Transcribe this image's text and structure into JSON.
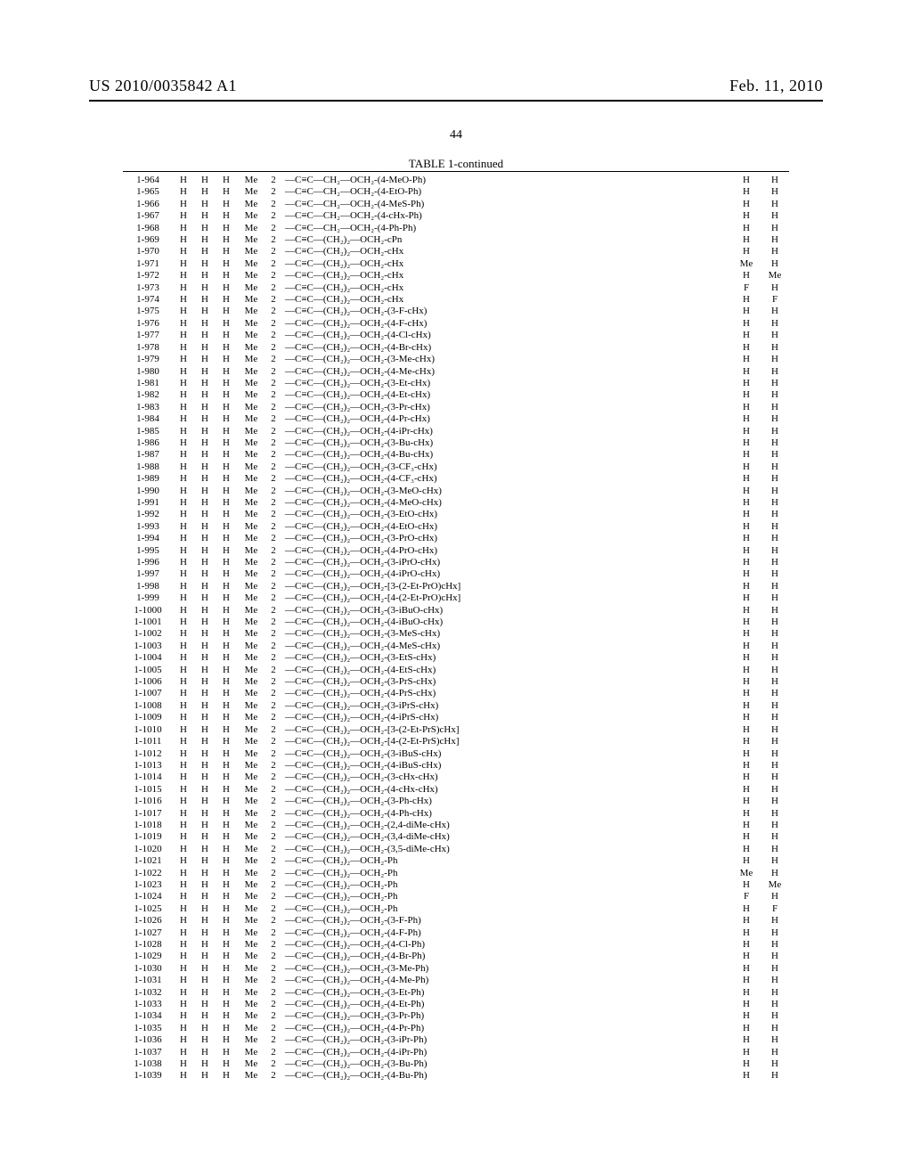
{
  "header": {
    "pubnum": "US 2010/0035842 A1",
    "date": "Feb. 11, 2010"
  },
  "pagenum": "44",
  "table_title": "TABLE 1-continued",
  "columns": {
    "count": 9
  },
  "rows": [
    {
      "id": "1-964",
      "a": "H",
      "b": "H",
      "c": "H",
      "d": "Me",
      "e": "2",
      "f": "—C≡C—CH₂—OCH₂-(4-MeO-Ph)",
      "g": "H",
      "h": "H"
    },
    {
      "id": "1-965",
      "a": "H",
      "b": "H",
      "c": "H",
      "d": "Me",
      "e": "2",
      "f": "—C≡C—CH₂—OCH₂-(4-EtO-Ph)",
      "g": "H",
      "h": "H"
    },
    {
      "id": "1-966",
      "a": "H",
      "b": "H",
      "c": "H",
      "d": "Me",
      "e": "2",
      "f": "—C≡C—CH₂—OCH₂-(4-MeS-Ph)",
      "g": "H",
      "h": "H"
    },
    {
      "id": "1-967",
      "a": "H",
      "b": "H",
      "c": "H",
      "d": "Me",
      "e": "2",
      "f": "—C≡C—CH₂—OCH₂-(4-cHx-Ph)",
      "g": "H",
      "h": "H"
    },
    {
      "id": "1-968",
      "a": "H",
      "b": "H",
      "c": "H",
      "d": "Me",
      "e": "2",
      "f": "—C≡C—CH₂—OCH₂-(4-Ph-Ph)",
      "g": "H",
      "h": "H"
    },
    {
      "id": "1-969",
      "a": "H",
      "b": "H",
      "c": "H",
      "d": "Me",
      "e": "2",
      "f": "—C≡C—(CH₂)₂—OCH₂-cPn",
      "g": "H",
      "h": "H"
    },
    {
      "id": "1-970",
      "a": "H",
      "b": "H",
      "c": "H",
      "d": "Me",
      "e": "2",
      "f": "—C≡C—(CH₂)₂—OCH₂-cHx",
      "g": "H",
      "h": "H"
    },
    {
      "id": "1-971",
      "a": "H",
      "b": "H",
      "c": "H",
      "d": "Me",
      "e": "2",
      "f": "—C≡C—(CH₂)₂—OCH₂-cHx",
      "g": "Me",
      "h": "H"
    },
    {
      "id": "1-972",
      "a": "H",
      "b": "H",
      "c": "H",
      "d": "Me",
      "e": "2",
      "f": "—C≡C—(CH₂)₂—OCH₂-cHx",
      "g": "H",
      "h": "Me"
    },
    {
      "id": "1-973",
      "a": "H",
      "b": "H",
      "c": "H",
      "d": "Me",
      "e": "2",
      "f": "—C≡C—(CH₂)₂—OCH₂-cHx",
      "g": "F",
      "h": "H"
    },
    {
      "id": "1-974",
      "a": "H",
      "b": "H",
      "c": "H",
      "d": "Me",
      "e": "2",
      "f": "—C≡C—(CH₂)₂—OCH₂-cHx",
      "g": "H",
      "h": "F"
    },
    {
      "id": "1-975",
      "a": "H",
      "b": "H",
      "c": "H",
      "d": "Me",
      "e": "2",
      "f": "—C≡C—(CH₂)₂—OCH₂-(3-F-cHx)",
      "g": "H",
      "h": "H"
    },
    {
      "id": "1-976",
      "a": "H",
      "b": "H",
      "c": "H",
      "d": "Me",
      "e": "2",
      "f": "—C≡C—(CH₂)₂—OCH₂-(4-F-cHx)",
      "g": "H",
      "h": "H"
    },
    {
      "id": "1-977",
      "a": "H",
      "b": "H",
      "c": "H",
      "d": "Me",
      "e": "2",
      "f": "—C≡C—(CH₂)₂—OCH₂-(4-Cl-cHx)",
      "g": "H",
      "h": "H"
    },
    {
      "id": "1-978",
      "a": "H",
      "b": "H",
      "c": "H",
      "d": "Me",
      "e": "2",
      "f": "—C≡C—(CH₂)₂—OCH₂-(4-Br-cHx)",
      "g": "H",
      "h": "H"
    },
    {
      "id": "1-979",
      "a": "H",
      "b": "H",
      "c": "H",
      "d": "Me",
      "e": "2",
      "f": "—C≡C—(CH₂)₂—OCH₂-(3-Me-cHx)",
      "g": "H",
      "h": "H"
    },
    {
      "id": "1-980",
      "a": "H",
      "b": "H",
      "c": "H",
      "d": "Me",
      "e": "2",
      "f": "—C≡C—(CH₂)₂—OCH₂-(4-Me-cHx)",
      "g": "H",
      "h": "H"
    },
    {
      "id": "1-981",
      "a": "H",
      "b": "H",
      "c": "H",
      "d": "Me",
      "e": "2",
      "f": "—C≡C—(CH₂)₂—OCH₂-(3-Et-cHx)",
      "g": "H",
      "h": "H"
    },
    {
      "id": "1-982",
      "a": "H",
      "b": "H",
      "c": "H",
      "d": "Me",
      "e": "2",
      "f": "—C≡C—(CH₂)₂—OCH₂-(4-Et-cHx)",
      "g": "H",
      "h": "H"
    },
    {
      "id": "1-983",
      "a": "H",
      "b": "H",
      "c": "H",
      "d": "Me",
      "e": "2",
      "f": "—C≡C—(CH₂)₂—OCH₂-(3-Pr-cHx)",
      "g": "H",
      "h": "H"
    },
    {
      "id": "1-984",
      "a": "H",
      "b": "H",
      "c": "H",
      "d": "Me",
      "e": "2",
      "f": "—C≡C—(CH₂)₂—OCH₂-(4-Pr-cHx)",
      "g": "H",
      "h": "H"
    },
    {
      "id": "1-985",
      "a": "H",
      "b": "H",
      "c": "H",
      "d": "Me",
      "e": "2",
      "f": "—C≡C—(CH₂)₂—OCH₂-(4-iPr-cHx)",
      "g": "H",
      "h": "H"
    },
    {
      "id": "1-986",
      "a": "H",
      "b": "H",
      "c": "H",
      "d": "Me",
      "e": "2",
      "f": "—C≡C—(CH₂)₂—OCH₂-(3-Bu-cHx)",
      "g": "H",
      "h": "H"
    },
    {
      "id": "1-987",
      "a": "H",
      "b": "H",
      "c": "H",
      "d": "Me",
      "e": "2",
      "f": "—C≡C—(CH₂)₂—OCH₂-(4-Bu-cHx)",
      "g": "H",
      "h": "H"
    },
    {
      "id": "1-988",
      "a": "H",
      "b": "H",
      "c": "H",
      "d": "Me",
      "e": "2",
      "f": "—C≡C—(CH₂)₂—OCH₂-(3-CF₃-cHx)",
      "g": "H",
      "h": "H"
    },
    {
      "id": "1-989",
      "a": "H",
      "b": "H",
      "c": "H",
      "d": "Me",
      "e": "2",
      "f": "—C≡C—(CH₂)₂—OCH₂-(4-CF₃-cHx)",
      "g": "H",
      "h": "H"
    },
    {
      "id": "1-990",
      "a": "H",
      "b": "H",
      "c": "H",
      "d": "Me",
      "e": "2",
      "f": "—C≡C—(CH₂)₂—OCH₂-(3-MeO-cHx)",
      "g": "H",
      "h": "H"
    },
    {
      "id": "1-991",
      "a": "H",
      "b": "H",
      "c": "H",
      "d": "Me",
      "e": "2",
      "f": "—C≡C—(CH₂)₂—OCH₂-(4-MeO-cHx)",
      "g": "H",
      "h": "H"
    },
    {
      "id": "1-992",
      "a": "H",
      "b": "H",
      "c": "H",
      "d": "Me",
      "e": "2",
      "f": "—C≡C—(CH₂)₂—OCH₂-(3-EtO-cHx)",
      "g": "H",
      "h": "H"
    },
    {
      "id": "1-993",
      "a": "H",
      "b": "H",
      "c": "H",
      "d": "Me",
      "e": "2",
      "f": "—C≡C—(CH₂)₂—OCH₂-(4-EtO-cHx)",
      "g": "H",
      "h": "H"
    },
    {
      "id": "1-994",
      "a": "H",
      "b": "H",
      "c": "H",
      "d": "Me",
      "e": "2",
      "f": "—C≡C—(CH₂)₂—OCH₂-(3-PrO-cHx)",
      "g": "H",
      "h": "H"
    },
    {
      "id": "1-995",
      "a": "H",
      "b": "H",
      "c": "H",
      "d": "Me",
      "e": "2",
      "f": "—C≡C—(CH₂)₂—OCH₂-(4-PrO-cHx)",
      "g": "H",
      "h": "H"
    },
    {
      "id": "1-996",
      "a": "H",
      "b": "H",
      "c": "H",
      "d": "Me",
      "e": "2",
      "f": "—C≡C—(CH₂)₂—OCH₂-(3-iPrO-cHx)",
      "g": "H",
      "h": "H"
    },
    {
      "id": "1-997",
      "a": "H",
      "b": "H",
      "c": "H",
      "d": "Me",
      "e": "2",
      "f": "—C≡C—(CH₂)₂—OCH₂-(4-iPrO-cHx)",
      "g": "H",
      "h": "H"
    },
    {
      "id": "1-998",
      "a": "H",
      "b": "H",
      "c": "H",
      "d": "Me",
      "e": "2",
      "f": "—C≡C—(CH₂)₂—OCH₂-[3-(2-Et-PrO)cHx]",
      "g": "H",
      "h": "H"
    },
    {
      "id": "1-999",
      "a": "H",
      "b": "H",
      "c": "H",
      "d": "Me",
      "e": "2",
      "f": "—C≡C—(CH₂)₂—OCH₂-[4-(2-Et-PrO)cHx]",
      "g": "H",
      "h": "H"
    },
    {
      "id": "1-1000",
      "a": "H",
      "b": "H",
      "c": "H",
      "d": "Me",
      "e": "2",
      "f": "—C≡C—(CH₂)₂—OCH₂-(3-iBuO-cHx)",
      "g": "H",
      "h": "H"
    },
    {
      "id": "1-1001",
      "a": "H",
      "b": "H",
      "c": "H",
      "d": "Me",
      "e": "2",
      "f": "—C≡C—(CH₂)₂—OCH₂-(4-iBuO-cHx)",
      "g": "H",
      "h": "H"
    },
    {
      "id": "1-1002",
      "a": "H",
      "b": "H",
      "c": "H",
      "d": "Me",
      "e": "2",
      "f": "—C≡C—(CH₂)₂—OCH₂-(3-MeS-cHx)",
      "g": "H",
      "h": "H"
    },
    {
      "id": "1-1003",
      "a": "H",
      "b": "H",
      "c": "H",
      "d": "Me",
      "e": "2",
      "f": "—C≡C—(CH₂)₂—OCH₂-(4-MeS-cHx)",
      "g": "H",
      "h": "H"
    },
    {
      "id": "1-1004",
      "a": "H",
      "b": "H",
      "c": "H",
      "d": "Me",
      "e": "2",
      "f": "—C≡C—(CH₂)₂—OCH₂-(3-EtS-cHx)",
      "g": "H",
      "h": "H"
    },
    {
      "id": "1-1005",
      "a": "H",
      "b": "H",
      "c": "H",
      "d": "Me",
      "e": "2",
      "f": "—C≡C—(CH₂)₂—OCH₂-(4-EtS-cHx)",
      "g": "H",
      "h": "H"
    },
    {
      "id": "1-1006",
      "a": "H",
      "b": "H",
      "c": "H",
      "d": "Me",
      "e": "2",
      "f": "—C≡C—(CH₂)₂—OCH₂-(3-PrS-cHx)",
      "g": "H",
      "h": "H"
    },
    {
      "id": "1-1007",
      "a": "H",
      "b": "H",
      "c": "H",
      "d": "Me",
      "e": "2",
      "f": "—C≡C—(CH₂)₂—OCH₂-(4-PrS-cHx)",
      "g": "H",
      "h": "H"
    },
    {
      "id": "1-1008",
      "a": "H",
      "b": "H",
      "c": "H",
      "d": "Me",
      "e": "2",
      "f": "—C≡C—(CH₂)₂—OCH₂-(3-iPrS-cHx)",
      "g": "H",
      "h": "H"
    },
    {
      "id": "1-1009",
      "a": "H",
      "b": "H",
      "c": "H",
      "d": "Me",
      "e": "2",
      "f": "—C≡C—(CH₂)₂—OCH₂-(4-iPrS-cHx)",
      "g": "H",
      "h": "H"
    },
    {
      "id": "1-1010",
      "a": "H",
      "b": "H",
      "c": "H",
      "d": "Me",
      "e": "2",
      "f": "—C≡C—(CH₂)₂—OCH₂-[3-(2-Et-PrS)cHx]",
      "g": "H",
      "h": "H"
    },
    {
      "id": "1-1011",
      "a": "H",
      "b": "H",
      "c": "H",
      "d": "Me",
      "e": "2",
      "f": "—C≡C—(CH₂)₂—OCH₂-[4-(2-Et-PrS)cHx]",
      "g": "H",
      "h": "H"
    },
    {
      "id": "1-1012",
      "a": "H",
      "b": "H",
      "c": "H",
      "d": "Me",
      "e": "2",
      "f": "—C≡C—(CH₂)₂—OCH₂-(3-iBuS-cHx)",
      "g": "H",
      "h": "H"
    },
    {
      "id": "1-1013",
      "a": "H",
      "b": "H",
      "c": "H",
      "d": "Me",
      "e": "2",
      "f": "—C≡C—(CH₂)₂—OCH₂-(4-iBuS-cHx)",
      "g": "H",
      "h": "H"
    },
    {
      "id": "1-1014",
      "a": "H",
      "b": "H",
      "c": "H",
      "d": "Me",
      "e": "2",
      "f": "—C≡C—(CH₂)₂—OCH₂-(3-cHx-cHx)",
      "g": "H",
      "h": "H"
    },
    {
      "id": "1-1015",
      "a": "H",
      "b": "H",
      "c": "H",
      "d": "Me",
      "e": "2",
      "f": "—C≡C—(CH₂)₂—OCH₂-(4-cHx-cHx)",
      "g": "H",
      "h": "H"
    },
    {
      "id": "1-1016",
      "a": "H",
      "b": "H",
      "c": "H",
      "d": "Me",
      "e": "2",
      "f": "—C≡C—(CH₂)₂—OCH₂-(3-Ph-cHx)",
      "g": "H",
      "h": "H"
    },
    {
      "id": "1-1017",
      "a": "H",
      "b": "H",
      "c": "H",
      "d": "Me",
      "e": "2",
      "f": "—C≡C—(CH₂)₂—OCH₂-(4-Ph-cHx)",
      "g": "H",
      "h": "H"
    },
    {
      "id": "1-1018",
      "a": "H",
      "b": "H",
      "c": "H",
      "d": "Me",
      "e": "2",
      "f": "—C≡C—(CH₂)₂—OCH₂-(2,4-diMe-cHx)",
      "g": "H",
      "h": "H"
    },
    {
      "id": "1-1019",
      "a": "H",
      "b": "H",
      "c": "H",
      "d": "Me",
      "e": "2",
      "f": "—C≡C—(CH₂)₂—OCH₂-(3,4-diMe-cHx)",
      "g": "H",
      "h": "H"
    },
    {
      "id": "1-1020",
      "a": "H",
      "b": "H",
      "c": "H",
      "d": "Me",
      "e": "2",
      "f": "—C≡C—(CH₂)₂—OCH₂-(3,5-diMe-cHx)",
      "g": "H",
      "h": "H"
    },
    {
      "id": "1-1021",
      "a": "H",
      "b": "H",
      "c": "H",
      "d": "Me",
      "e": "2",
      "f": "—C≡C—(CH₂)₂—OCH₂-Ph",
      "g": "H",
      "h": "H"
    },
    {
      "id": "1-1022",
      "a": "H",
      "b": "H",
      "c": "H",
      "d": "Me",
      "e": "2",
      "f": "—C≡C—(CH₂)₂—OCH₂-Ph",
      "g": "Me",
      "h": "H"
    },
    {
      "id": "1-1023",
      "a": "H",
      "b": "H",
      "c": "H",
      "d": "Me",
      "e": "2",
      "f": "—C≡C—(CH₂)₂—OCH₂-Ph",
      "g": "H",
      "h": "Me"
    },
    {
      "id": "1-1024",
      "a": "H",
      "b": "H",
      "c": "H",
      "d": "Me",
      "e": "2",
      "f": "—C≡C—(CH₂)₂—OCH₂-Ph",
      "g": "F",
      "h": "H"
    },
    {
      "id": "1-1025",
      "a": "H",
      "b": "H",
      "c": "H",
      "d": "Me",
      "e": "2",
      "f": "—C≡C—(CH₂)₂—OCH₂-Ph",
      "g": "H",
      "h": "F"
    },
    {
      "id": "1-1026",
      "a": "H",
      "b": "H",
      "c": "H",
      "d": "Me",
      "e": "2",
      "f": "—C≡C—(CH₂)₂—OCH₂-(3-F-Ph)",
      "g": "H",
      "h": "H"
    },
    {
      "id": "1-1027",
      "a": "H",
      "b": "H",
      "c": "H",
      "d": "Me",
      "e": "2",
      "f": "—C≡C—(CH₂)₂—OCH₂-(4-F-Ph)",
      "g": "H",
      "h": "H"
    },
    {
      "id": "1-1028",
      "a": "H",
      "b": "H",
      "c": "H",
      "d": "Me",
      "e": "2",
      "f": "—C≡C—(CH₂)₂—OCH₂-(4-Cl-Ph)",
      "g": "H",
      "h": "H"
    },
    {
      "id": "1-1029",
      "a": "H",
      "b": "H",
      "c": "H",
      "d": "Me",
      "e": "2",
      "f": "—C≡C—(CH₂)₂—OCH₂-(4-Br-Ph)",
      "g": "H",
      "h": "H"
    },
    {
      "id": "1-1030",
      "a": "H",
      "b": "H",
      "c": "H",
      "d": "Me",
      "e": "2",
      "f": "—C≡C—(CH₂)₂—OCH₂-(3-Me-Ph)",
      "g": "H",
      "h": "H"
    },
    {
      "id": "1-1031",
      "a": "H",
      "b": "H",
      "c": "H",
      "d": "Me",
      "e": "2",
      "f": "—C≡C—(CH₂)₂—OCH₂-(4-Me-Ph)",
      "g": "H",
      "h": "H"
    },
    {
      "id": "1-1032",
      "a": "H",
      "b": "H",
      "c": "H",
      "d": "Me",
      "e": "2",
      "f": "—C≡C—(CH₂)₂—OCH₂-(3-Et-Ph)",
      "g": "H",
      "h": "H"
    },
    {
      "id": "1-1033",
      "a": "H",
      "b": "H",
      "c": "H",
      "d": "Me",
      "e": "2",
      "f": "—C≡C—(CH₂)₂—OCH₂-(4-Et-Ph)",
      "g": "H",
      "h": "H"
    },
    {
      "id": "1-1034",
      "a": "H",
      "b": "H",
      "c": "H",
      "d": "Me",
      "e": "2",
      "f": "—C≡C—(CH₂)₂—OCH₂-(3-Pr-Ph)",
      "g": "H",
      "h": "H"
    },
    {
      "id": "1-1035",
      "a": "H",
      "b": "H",
      "c": "H",
      "d": "Me",
      "e": "2",
      "f": "—C≡C—(CH₂)₂—OCH₂-(4-Pr-Ph)",
      "g": "H",
      "h": "H"
    },
    {
      "id": "1-1036",
      "a": "H",
      "b": "H",
      "c": "H",
      "d": "Me",
      "e": "2",
      "f": "—C≡C—(CH₂)₂—OCH₂-(3-iPr-Ph)",
      "g": "H",
      "h": "H"
    },
    {
      "id": "1-1037",
      "a": "H",
      "b": "H",
      "c": "H",
      "d": "Me",
      "e": "2",
      "f": "—C≡C—(CH₂)₂—OCH₂-(4-iPr-Ph)",
      "g": "H",
      "h": "H"
    },
    {
      "id": "1-1038",
      "a": "H",
      "b": "H",
      "c": "H",
      "d": "Me",
      "e": "2",
      "f": "—C≡C—(CH₂)₂—OCH₂-(3-Bu-Ph)",
      "g": "H",
      "h": "H"
    },
    {
      "id": "1-1039",
      "a": "H",
      "b": "H",
      "c": "H",
      "d": "Me",
      "e": "2",
      "f": "—C≡C—(CH₂)₂—OCH₂-(4-Bu-Ph)",
      "g": "H",
      "h": "H"
    }
  ]
}
